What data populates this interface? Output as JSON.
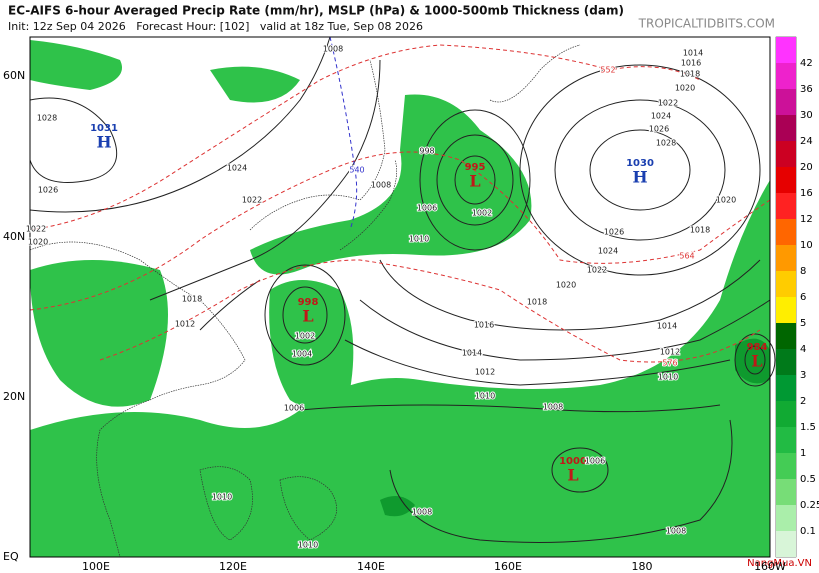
{
  "header": {
    "title": "EC-AIFS 6-hour Averaged Precip Rate (mm/hr), MSLP (hPa) & 1000-500mb Thickness (dam)",
    "run_info": "Init: 12z Sep 04 2026   Forecast Hour: [102]   valid at 18z Tue, Sep 08 2026",
    "site": "TROPICALTIDBITS.COM"
  },
  "latitude_labels": [
    "60N",
    "40N",
    "20N",
    "EQ"
  ],
  "longitude_labels": [
    "100E",
    "120E",
    "140E",
    "160E",
    "180",
    "160W"
  ],
  "colorbar_labels": [
    "42",
    "36",
    "30",
    "24",
    "20",
    "16",
    "12",
    "10",
    "8",
    "6",
    "5",
    "4",
    "3",
    "2",
    "1.5",
    "1",
    "0.5",
    "0.25",
    "0.1"
  ],
  "pressure_centers": [
    {
      "value": "1031",
      "letter": "H"
    },
    {
      "value": "1030",
      "letter": "H"
    },
    {
      "value": "998",
      "letter": "L"
    },
    {
      "value": "995",
      "letter": "L"
    },
    {
      "value": "1000",
      "letter": "L"
    },
    {
      "value": "984",
      "letter": "L"
    }
  ],
  "isobar_labels": [
    "1008",
    "1014",
    "1016",
    "1018",
    "1020",
    "1022",
    "1024",
    "1026",
    "1028",
    "1020",
    "1018",
    "1026",
    "1024",
    "1022",
    "1020",
    "1018",
    "1016",
    "1014",
    "1012",
    "1010",
    "1008",
    "1014",
    "1012",
    "1010",
    "1006",
    "1004",
    "1002",
    "1010",
    "1006",
    "1008",
    "998",
    "1002",
    "1024",
    "1022",
    "1028",
    "1026",
    "1022",
    "1020",
    "1018",
    "1012",
    "1008",
    "1008",
    "1006",
    "1010",
    "1010"
  ],
  "thickness_labels": [
    "552",
    "564",
    "576",
    "540"
  ],
  "watermark": "NangMua.VN"
}
